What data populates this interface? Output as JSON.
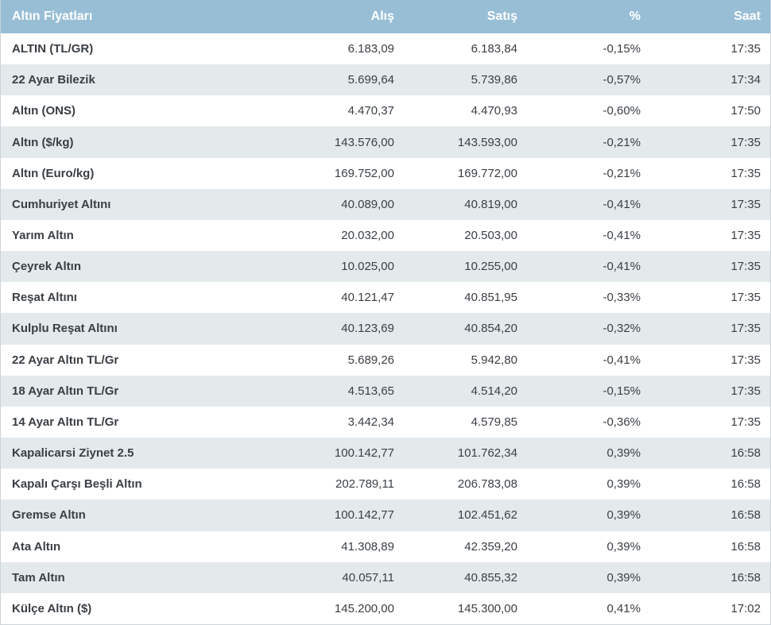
{
  "chart_data": {
    "type": "table",
    "title": "Altın Fiyatları",
    "columns": [
      "Altın Fiyatları",
      "Alış",
      "Satış",
      "%",
      "Saat"
    ],
    "rows": [
      {
        "name": "ALTIN (TL/GR)",
        "alis": "6.183,09",
        "satis": "6.183,84",
        "percent": "-0,15%",
        "saat": "17:35"
      },
      {
        "name": "22 Ayar Bilezik",
        "alis": "5.699,64",
        "satis": "5.739,86",
        "percent": "-0,57%",
        "saat": "17:34"
      },
      {
        "name": "Altın (ONS)",
        "alis": "4.470,37",
        "satis": "4.470,93",
        "percent": "-0,60%",
        "saat": "17:50"
      },
      {
        "name": "Altın ($/kg)",
        "alis": "143.576,00",
        "satis": "143.593,00",
        "percent": "-0,21%",
        "saat": "17:35"
      },
      {
        "name": "Altın (Euro/kg)",
        "alis": "169.752,00",
        "satis": "169.772,00",
        "percent": "-0,21%",
        "saat": "17:35"
      },
      {
        "name": "Cumhuriyet Altını",
        "alis": "40.089,00",
        "satis": "40.819,00",
        "percent": "-0,41%",
        "saat": "17:35"
      },
      {
        "name": "Yarım Altın",
        "alis": "20.032,00",
        "satis": "20.503,00",
        "percent": "-0,41%",
        "saat": "17:35"
      },
      {
        "name": "Çeyrek Altın",
        "alis": "10.025,00",
        "satis": "10.255,00",
        "percent": "-0,41%",
        "saat": "17:35"
      },
      {
        "name": "Reşat Altını",
        "alis": "40.121,47",
        "satis": "40.851,95",
        "percent": "-0,33%",
        "saat": "17:35"
      },
      {
        "name": "Kulplu Reşat Altını",
        "alis": "40.123,69",
        "satis": "40.854,20",
        "percent": "-0,32%",
        "saat": "17:35"
      },
      {
        "name": "22 Ayar Altın TL/Gr",
        "alis": "5.689,26",
        "satis": "5.942,80",
        "percent": "-0,41%",
        "saat": "17:35"
      },
      {
        "name": "18 Ayar Altın TL/Gr",
        "alis": "4.513,65",
        "satis": "4.514,20",
        "percent": "-0,15%",
        "saat": "17:35"
      },
      {
        "name": "14 Ayar Altın TL/Gr",
        "alis": "3.442,34",
        "satis": "4.579,85",
        "percent": "-0,36%",
        "saat": "17:35"
      },
      {
        "name": "Kapalicarsi Ziynet 2.5",
        "alis": "100.142,77",
        "satis": "101.762,34",
        "percent": "0,39%",
        "saat": "16:58"
      },
      {
        "name": "Kapalı Çarşı Beşli Altın",
        "alis": "202.789,11",
        "satis": "206.783,08",
        "percent": "0,39%",
        "saat": "16:58"
      },
      {
        "name": "Gremse Altın",
        "alis": "100.142,77",
        "satis": "102.451,62",
        "percent": "0,39%",
        "saat": "16:58"
      },
      {
        "name": "Ata Altın",
        "alis": "41.308,89",
        "satis": "42.359,20",
        "percent": "0,39%",
        "saat": "16:58"
      },
      {
        "name": "Tam Altın",
        "alis": "40.057,11",
        "satis": "40.855,32",
        "percent": "0,39%",
        "saat": "16:58"
      },
      {
        "name": "Külçe Altın ($)",
        "alis": "145.200,00",
        "satis": "145.300,00",
        "percent": "0,41%",
        "saat": "17:02"
      }
    ]
  },
  "colors": {
    "header_bg": "#98bed6",
    "stripe_bg": "#e4e9ec",
    "text": "#3a3f44",
    "border": "#ccd3d8"
  }
}
